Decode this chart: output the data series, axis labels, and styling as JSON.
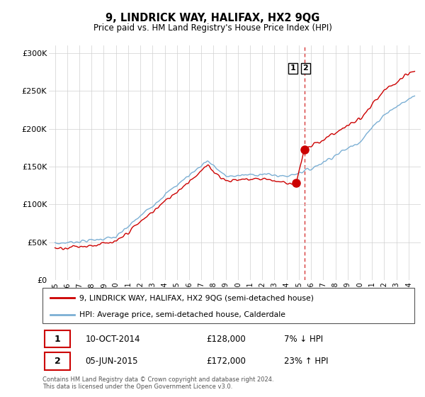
{
  "title": "9, LINDRICK WAY, HALIFAX, HX2 9QG",
  "subtitle": "Price paid vs. HM Land Registry's House Price Index (HPI)",
  "legend_line1": "9, LINDRICK WAY, HALIFAX, HX2 9QG (semi-detached house)",
  "legend_line2": "HPI: Average price, semi-detached house, Calderdale",
  "footnote": "Contains HM Land Registry data © Crown copyright and database right 2024.\nThis data is licensed under the Open Government Licence v3.0.",
  "sale1_date": "10-OCT-2014",
  "sale1_price": "£128,000",
  "sale1_hpi": "7% ↓ HPI",
  "sale2_date": "05-JUN-2015",
  "sale2_price": "£172,000",
  "sale2_hpi": "23% ↑ HPI",
  "red_color": "#cc0000",
  "blue_color": "#7bafd4",
  "sale1_x": 2014.78,
  "sale1_y": 128000,
  "sale2_x": 2015.45,
  "sale2_y": 172000,
  "vline_x": 2015.45,
  "ylim_min": 0,
  "ylim_max": 310000,
  "xlim_min": 1994.5,
  "xlim_max": 2025.0,
  "yticks": [
    0,
    50000,
    100000,
    150000,
    200000,
    250000,
    300000
  ],
  "ytick_labels": [
    "£0",
    "£50K",
    "£100K",
    "£150K",
    "£200K",
    "£250K",
    "£300K"
  ],
  "xticks": [
    1995,
    1996,
    1997,
    1998,
    1999,
    2000,
    2001,
    2002,
    2003,
    2004,
    2005,
    2006,
    2007,
    2008,
    2009,
    2010,
    2011,
    2012,
    2013,
    2014,
    2015,
    2016,
    2017,
    2018,
    2019,
    2020,
    2021,
    2022,
    2023,
    2024
  ]
}
